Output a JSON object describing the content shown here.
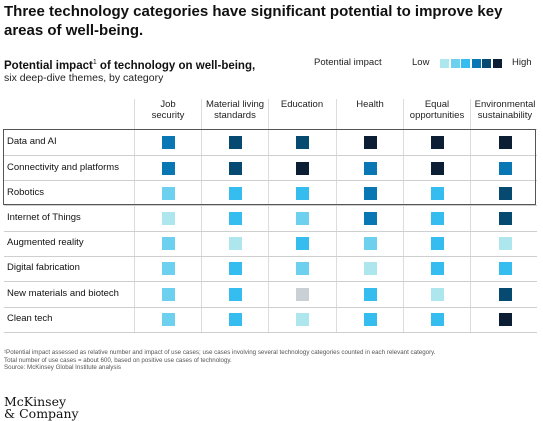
{
  "headline": "Three technology categories have significant potential to improve key areas of well-being.",
  "subtitle": {
    "main": "Potential impact",
    "sup": "1",
    "rest": " of technology on well-being,",
    "sub": "six deep-dive themes, by category"
  },
  "legend": {
    "title": "Potential impact",
    "low": "Low",
    "high": "High",
    "colors": [
      "#c9d0d6",
      "#aee6ee",
      "#6dd0ee",
      "#36bdf0",
      "#0877b4",
      "#074a71",
      "#0c1e33"
    ]
  },
  "columns": [
    [
      "Job",
      "security"
    ],
    [
      "Material living",
      "standards"
    ],
    [
      "Education"
    ],
    [
      "Health"
    ],
    [
      "Equal",
      "opportunities"
    ],
    [
      "Environmental",
      "sustainability"
    ]
  ],
  "chart_data": {
    "type": "heatmap",
    "title": "Potential impact of technology on well-being, six deep-dive themes, by category",
    "scale": [
      "Low",
      "High"
    ],
    "levels": 7,
    "x_categories": [
      "Job security",
      "Material living standards",
      "Education",
      "Health",
      "Equal opportunities",
      "Environmental sustainability"
    ],
    "y_categories": [
      "Data and AI",
      "Connectivity and platforms",
      "Robotics",
      "Internet of Things",
      "Augmented reality",
      "Digital fabrication",
      "New materials and biotech",
      "Clean tech"
    ],
    "highlighted_rows": [
      "Data and AI",
      "Connectivity and platforms",
      "Robotics"
    ],
    "values": [
      [
        5,
        6,
        6,
        7,
        7,
        7
      ],
      [
        5,
        6,
        7,
        5,
        7,
        5
      ],
      [
        3,
        4,
        4,
        5,
        4,
        6
      ],
      [
        2,
        4,
        3,
        5,
        4,
        6
      ],
      [
        3,
        2,
        4,
        3,
        4,
        2
      ],
      [
        3,
        4,
        3,
        2,
        4,
        4
      ],
      [
        3,
        4,
        1,
        4,
        2,
        6
      ],
      [
        3,
        4,
        2,
        4,
        4,
        7
      ]
    ]
  },
  "footnote": [
    "¹Potential impact assessed as relative number and impact of use cases; use cases involving several technology categories counted in each relevant category.",
    "Total number of use cases = about 600, based on positive use cases of technology.",
    "Source: McKinsey Global Institute analysis"
  ],
  "logo": [
    "McKinsey",
    "& Company"
  ]
}
